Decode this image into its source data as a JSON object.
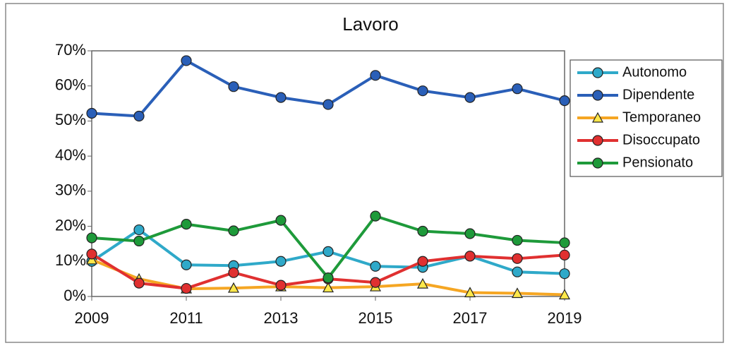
{
  "chart_data": {
    "type": "line",
    "title": "Lavoro",
    "x": [
      2009,
      2010,
      2011,
      2012,
      2013,
      2014,
      2015,
      2016,
      2017,
      2018,
      2019
    ],
    "xlim": [
      2009,
      2019
    ],
    "xticks": [
      2009,
      2011,
      2013,
      2015,
      2017,
      2019
    ],
    "ylim": [
      0,
      70
    ],
    "yticks": [
      {
        "value": 0,
        "label": "0%"
      },
      {
        "value": 10,
        "label": "10%"
      },
      {
        "value": 20,
        "label": "20%"
      },
      {
        "value": 30,
        "label": "30%"
      },
      {
        "value": 40,
        "label": "40%"
      },
      {
        "value": 50,
        "label": "50%"
      },
      {
        "value": 60,
        "label": "60%"
      },
      {
        "value": 70,
        "label": "70%"
      }
    ],
    "grid": false,
    "legend": "right",
    "series": [
      {
        "name": "Autonomo",
        "color": "#2fa9c9",
        "marker": "circle",
        "values": [
          10,
          19,
          9,
          8.8,
          10,
          12.8,
          8.6,
          8.3,
          11.5,
          7,
          6.5
        ]
      },
      {
        "name": "Dipendente",
        "color": "#2a5fb8",
        "marker": "circle",
        "values": [
          52.2,
          51.4,
          67.2,
          59.8,
          56.7,
          54.7,
          63,
          58.6,
          56.7,
          59.2,
          55.8
        ]
      },
      {
        "name": "Temporaneo",
        "color": "#f5a623",
        "marker": "triangle",
        "values": [
          10.5,
          5,
          2.2,
          2.4,
          2.8,
          2.5,
          2.8,
          3.6,
          1.1,
          0.9,
          0.5
        ]
      },
      {
        "name": "Disoccupato",
        "color": "#e03030",
        "marker": "circle",
        "values": [
          12.1,
          3.8,
          2.3,
          6.8,
          3.2,
          5,
          4,
          10,
          11.5,
          10.8,
          11.8
        ]
      },
      {
        "name": "Pensionato",
        "color": "#1e9a3a",
        "marker": "circle",
        "values": [
          16.7,
          15.8,
          20.6,
          18.7,
          21.7,
          5.3,
          22.9,
          18.6,
          17.9,
          16,
          15.3
        ]
      }
    ]
  }
}
